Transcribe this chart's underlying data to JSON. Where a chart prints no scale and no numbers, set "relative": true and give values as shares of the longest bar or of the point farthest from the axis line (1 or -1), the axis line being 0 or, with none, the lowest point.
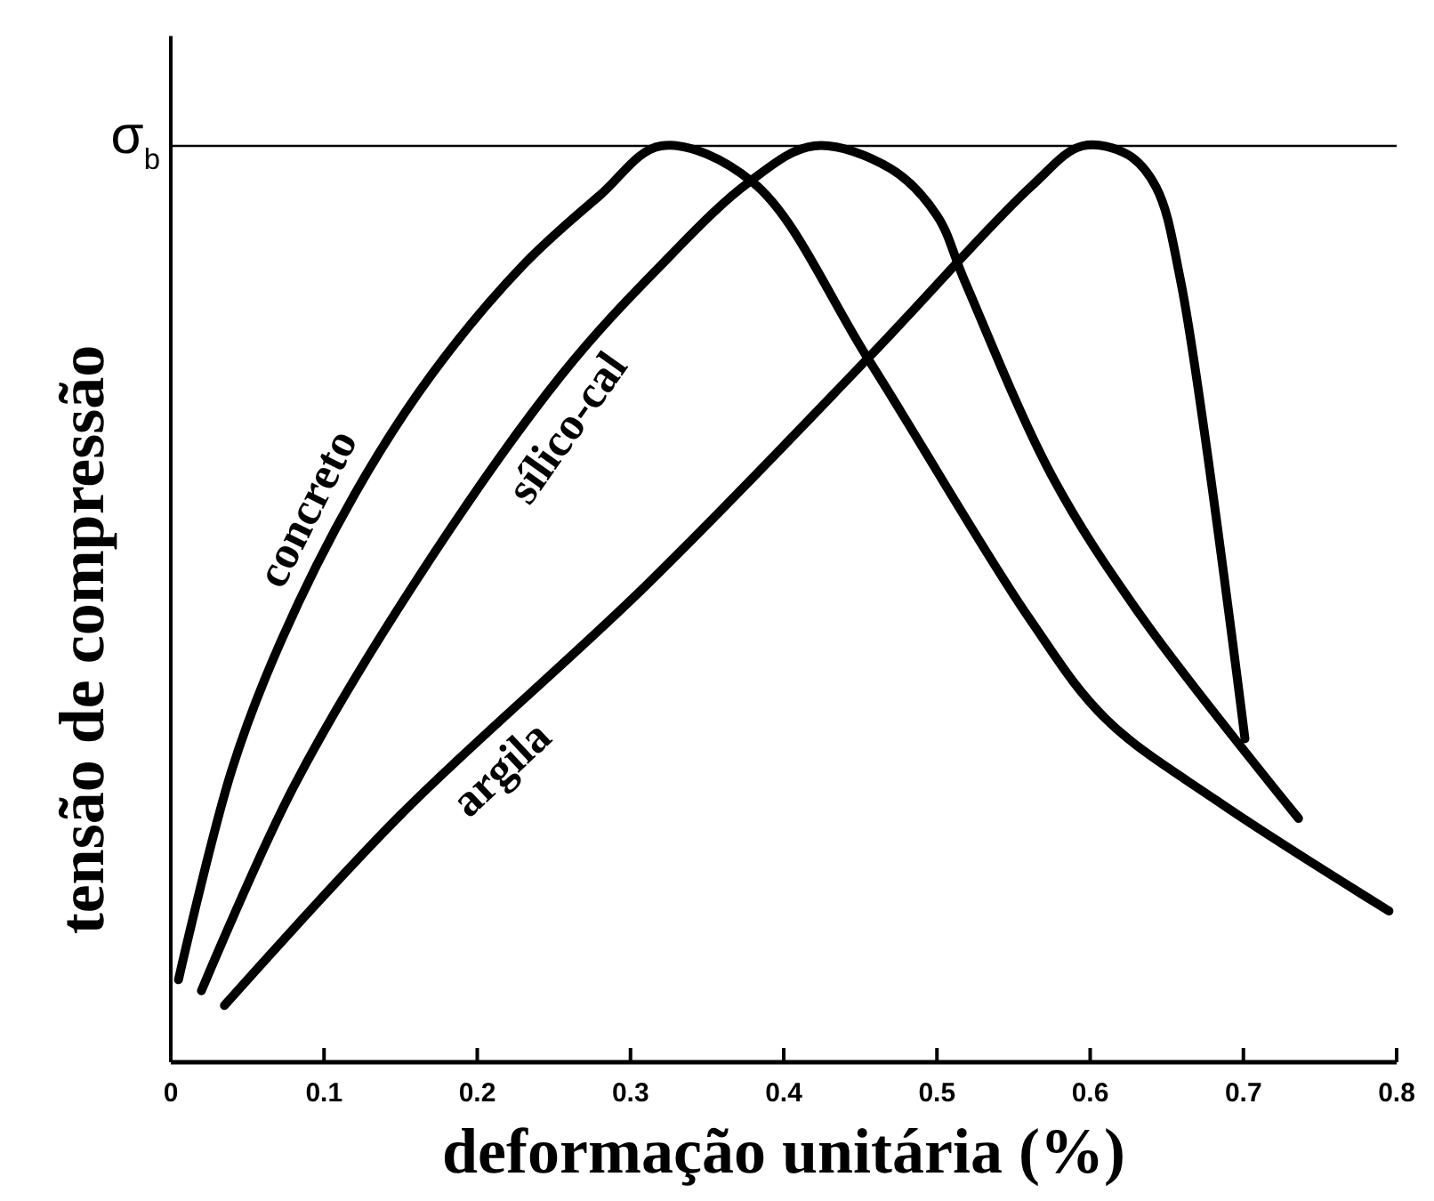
{
  "chart_data": {
    "type": "line",
    "relative": true,
    "xlabel": "deformação unitária (%)",
    "ylabel": "tensão de compressão",
    "xlim": [
      0,
      0.8
    ],
    "xticks": [
      0,
      0.1,
      0.2,
      0.3,
      0.4,
      0.5,
      0.6,
      0.7,
      0.8
    ],
    "grid": false,
    "marker": "none",
    "line_style": "solid",
    "ref_lines": [
      {
        "axis": "y",
        "value": 1,
        "label": "σ$_{b}$",
        "color": "#000000"
      }
    ],
    "series": [
      {
        "name": "concreto",
        "color": "#000000",
        "x": [
          0.005,
          0.04,
          0.072,
          0.12,
          0.17,
          0.23,
          0.28,
          0.32,
          0.38,
          0.456,
          0.56,
          0.61,
          0.683,
          0.795
        ],
        "values": [
          0.09,
          0.32,
          0.46,
          0.62,
          0.75,
          0.87,
          0.946,
          1,
          0.96,
          0.765,
          0.485,
          0.375,
          0.285,
          0.165
        ]
      },
      {
        "name": "sílico-cal",
        "color": "#000000",
        "x": [
          0.02,
          0.08,
          0.158,
          0.255,
          0.32,
          0.377,
          0.42,
          0.47,
          0.5,
          0.518,
          0.575,
          0.634,
          0.736
        ],
        "values": [
          0.078,
          0.3,
          0.52,
          0.75,
          0.87,
          0.96,
          1,
          0.975,
          0.924,
          0.853,
          0.64,
          0.485,
          0.266
        ]
      },
      {
        "name": "argila",
        "color": "#000000",
        "x": [
          0.035,
          0.15,
          0.31,
          0.456,
          0.561,
          0.595,
          0.625,
          0.643,
          0.659,
          0.701
        ],
        "values": [
          0.062,
          0.27,
          0.52,
          0.77,
          0.955,
          1,
          0.99,
          0.955,
          0.853,
          0.353
        ]
      }
    ]
  }
}
